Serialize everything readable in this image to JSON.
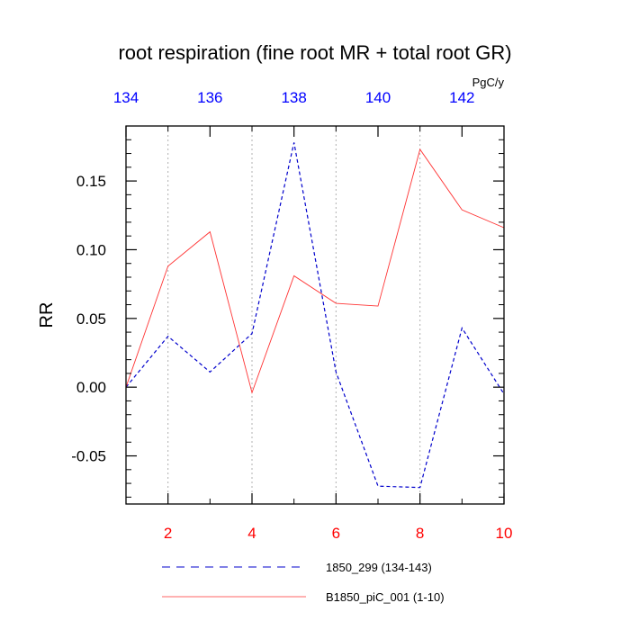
{
  "chart_data": {
    "type": "line",
    "title": "root respiration (fine root MR + total root GR)",
    "units": "PgC/y",
    "ylabel": "RR",
    "xlabel": "",
    "x_bottom": {
      "range": [
        1,
        10
      ],
      "ticks": [
        2,
        4,
        6,
        8,
        10
      ],
      "tick_labels": [
        "2",
        "4",
        "6",
        "8",
        "10"
      ],
      "color": "#ff0000"
    },
    "x_top": {
      "range": [
        134,
        143
      ],
      "ticks": [
        134,
        136,
        138,
        140,
        142
      ],
      "tick_labels": [
        "134",
        "136",
        "138",
        "140",
        "142"
      ],
      "color": "#0000ff"
    },
    "y": {
      "range": [
        -0.085,
        0.19
      ],
      "ticks": [
        -0.05,
        0.0,
        0.05,
        0.1,
        0.15
      ],
      "tick_labels": [
        "-0.05",
        "0.00",
        "0.05",
        "0.10",
        "0.15"
      ]
    },
    "grid": "vertical dotted at bottom ticks",
    "legend_position": "bottom",
    "series": [
      {
        "name": "1850_299 (134-143)",
        "axis": "top",
        "style": "dashed",
        "color": "#0000cc",
        "x": [
          134,
          135,
          136,
          137,
          138,
          139,
          140,
          141,
          142,
          143
        ],
        "values": [
          0.0,
          0.037,
          0.011,
          0.039,
          0.178,
          0.011,
          -0.072,
          -0.073,
          0.043,
          -0.005
        ]
      },
      {
        "name": "B1850_piC_001 (1-10)",
        "axis": "bottom",
        "style": "solid",
        "color": "#ff3333",
        "x": [
          1,
          2,
          3,
          4,
          5,
          6,
          7,
          8,
          9,
          10
        ],
        "values": [
          0.0,
          0.088,
          0.113,
          -0.004,
          0.081,
          0.061,
          0.059,
          0.173,
          0.129,
          0.116
        ]
      }
    ]
  }
}
